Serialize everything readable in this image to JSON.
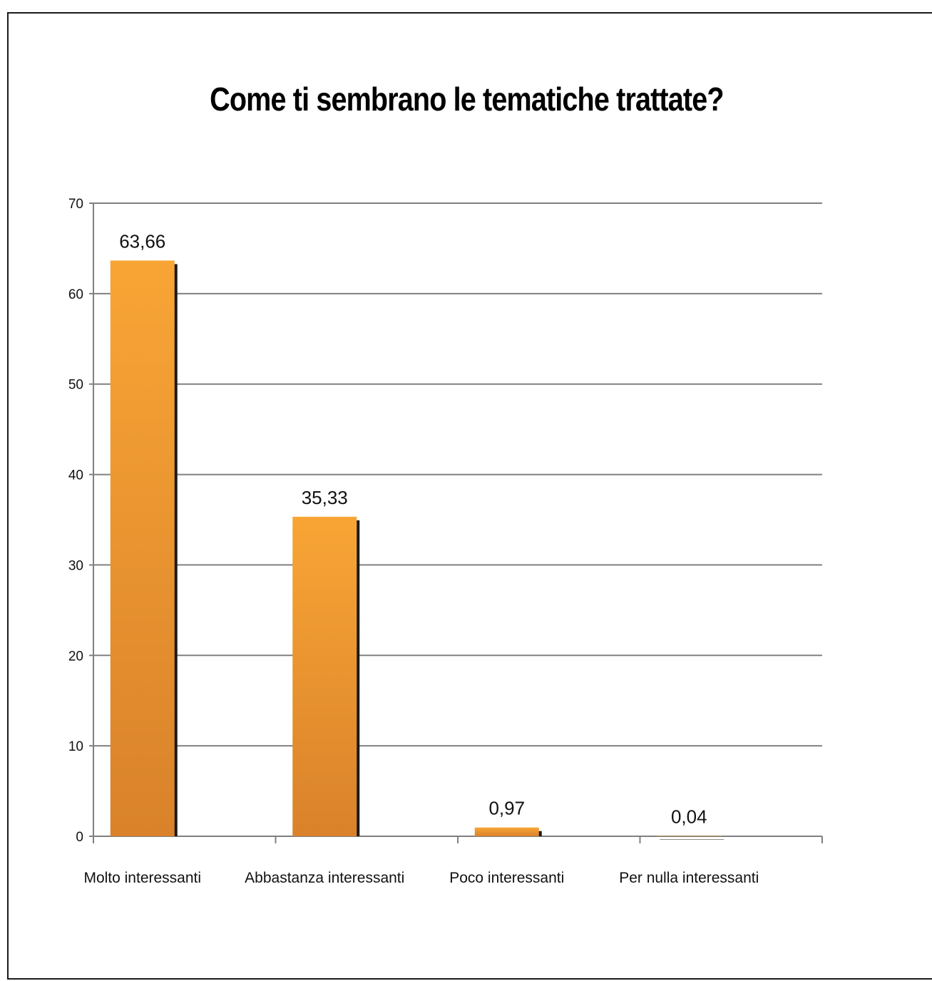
{
  "chart_data": {
    "type": "bar",
    "title": "Come ti sembrano le tematiche trattate?",
    "categories": [
      "Molto interessanti",
      "Abbastanza  interessanti",
      "Poco interessanti",
      "Per nulla interessanti"
    ],
    "values": [
      63.66,
      35.33,
      0.97,
      0.04
    ],
    "data_labels": [
      "63,66",
      "35,33",
      "0,97",
      "0,04"
    ],
    "yticks": [
      0,
      10,
      20,
      30,
      40,
      50,
      60,
      70
    ],
    "ylim": [
      0,
      70
    ],
    "xlabel": "",
    "ylabel": "",
    "grid": true,
    "legend": "none",
    "colors": {
      "bar_top": "#f8a535",
      "bar_bottom": "#d9822b",
      "shadow": "#1a1a1a",
      "grid": "#808080"
    }
  }
}
